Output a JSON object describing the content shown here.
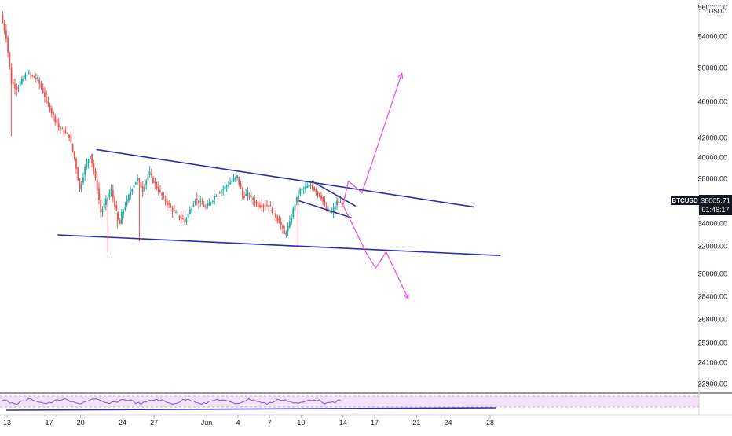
{
  "chart_data": {
    "type": "candlestick",
    "symbol": "BTCUSD",
    "currency": "USD",
    "last_price": "36005.71",
    "countdown": "01:46:17",
    "price_axis_labels": [
      "56000.00",
      "54000.00",
      "50000.00",
      "46000.00",
      "42000.00",
      "40000.00",
      "38000.00",
      "36000.00",
      "34000.00",
      "32000.00",
      "30000.00",
      "28400.00",
      "26800.00",
      "25300.00",
      "24100.00",
      "22900.00"
    ],
    "time_axis_labels": [
      {
        "label": "13",
        "day": 0
      },
      {
        "label": "17",
        "day": 4
      },
      {
        "label": "20",
        "day": 7
      },
      {
        "label": "24",
        "day": 11
      },
      {
        "label": "27",
        "day": 14
      },
      {
        "label": "Jun",
        "day": 19
      },
      {
        "label": "4",
        "day": 22
      },
      {
        "label": "7",
        "day": 25
      },
      {
        "label": "10",
        "day": 28
      },
      {
        "label": "14",
        "day": 32
      },
      {
        "label": "17",
        "day": 35
      },
      {
        "label": "21",
        "day": 39
      },
      {
        "label": "24",
        "day": 42
      },
      {
        "label": "28",
        "day": 46
      }
    ],
    "price_path": [
      {
        "day": -0.5,
        "p": 57000
      },
      {
        "day": 0,
        "p": 54500
      },
      {
        "day": 0.5,
        "p": 49500
      },
      {
        "day": 1,
        "p": 48800
      },
      {
        "day": 2,
        "p": 50500
      },
      {
        "day": 3,
        "p": 49800
      },
      {
        "day": 4,
        "p": 47000
      },
      {
        "day": 5,
        "p": 44500
      },
      {
        "day": 6,
        "p": 43500
      },
      {
        "day": 6.6,
        "p": 40500
      },
      {
        "day": 7,
        "p": 37500
      },
      {
        "day": 7.5,
        "p": 40000
      },
      {
        "day": 8,
        "p": 41500
      },
      {
        "day": 8.7,
        "p": 37500
      },
      {
        "day": 9,
        "p": 35000
      },
      {
        "day": 10,
        "p": 37500
      },
      {
        "day": 10.8,
        "p": 33500
      },
      {
        "day": 11,
        "p": 34800
      },
      {
        "day": 12,
        "p": 37800
      },
      {
        "day": 12.5,
        "p": 38800
      },
      {
        "day": 13,
        "p": 37500
      },
      {
        "day": 13.6,
        "p": 39500
      },
      {
        "day": 14,
        "p": 38500
      },
      {
        "day": 15,
        "p": 36500
      },
      {
        "day": 16,
        "p": 35000
      },
      {
        "day": 17,
        "p": 34000
      },
      {
        "day": 18,
        "p": 36500
      },
      {
        "day": 19,
        "p": 35500
      },
      {
        "day": 20,
        "p": 37000
      },
      {
        "day": 21,
        "p": 38000
      },
      {
        "day": 22,
        "p": 39000
      },
      {
        "day": 22.5,
        "p": 36800
      },
      {
        "day": 23,
        "p": 37000
      },
      {
        "day": 24,
        "p": 35800
      },
      {
        "day": 25,
        "p": 35800
      },
      {
        "day": 26,
        "p": 34000
      },
      {
        "day": 26.5,
        "p": 32500
      },
      {
        "day": 27,
        "p": 33800
      },
      {
        "day": 27.5,
        "p": 36000
      },
      {
        "day": 28,
        "p": 37500
      },
      {
        "day": 29,
        "p": 38000
      },
      {
        "day": 30,
        "p": 36700
      },
      {
        "day": 30.5,
        "p": 35200
      },
      {
        "day": 31,
        "p": 35000
      },
      {
        "day": 31.5,
        "p": 36200
      },
      {
        "day": 32,
        "p": 36000
      }
    ],
    "trendlines": [
      {
        "x1": 8.5,
        "p1": 42000,
        "x2": 44.5,
        "p2": 35600,
        "color": "#2f2ca8"
      },
      {
        "x1": 4.8,
        "p1": 32500,
        "x2": 47,
        "p2": 30200,
        "color": "#2f2ca8"
      },
      {
        "x1": 29,
        "p1": 38500,
        "x2": 33.2,
        "p2": 35700,
        "color": "#2f2ca8"
      },
      {
        "x1": 27.8,
        "p1": 36300,
        "x2": 32.8,
        "p2": 34400,
        "color": "#2f2ca8"
      }
    ],
    "projections": [
      {
        "points": [
          {
            "day": 32,
            "p": 35800
          },
          {
            "day": 32.5,
            "p": 38500
          },
          {
            "day": 33.8,
            "p": 37200
          },
          {
            "day": 37.6,
            "p": 50500
          }
        ],
        "color": "#e14fe8"
      },
      {
        "points": [
          {
            "day": 32,
            "p": 35800
          },
          {
            "day": 34.2,
            "p": 30500
          },
          {
            "day": 35.1,
            "p": 28800
          },
          {
            "day": 36.1,
            "p": 30600
          },
          {
            "day": 38.2,
            "p": 25400
          }
        ],
        "color": "#e14fe8"
      }
    ],
    "colors": {
      "up": "#26a69a",
      "down": "#ef5350",
      "trendline": "#2f2ca8",
      "projection": "#e14fe8",
      "rsi": "#7e57c2",
      "rsi_band": "#f2e3f8",
      "price_tag": "#131722"
    }
  }
}
